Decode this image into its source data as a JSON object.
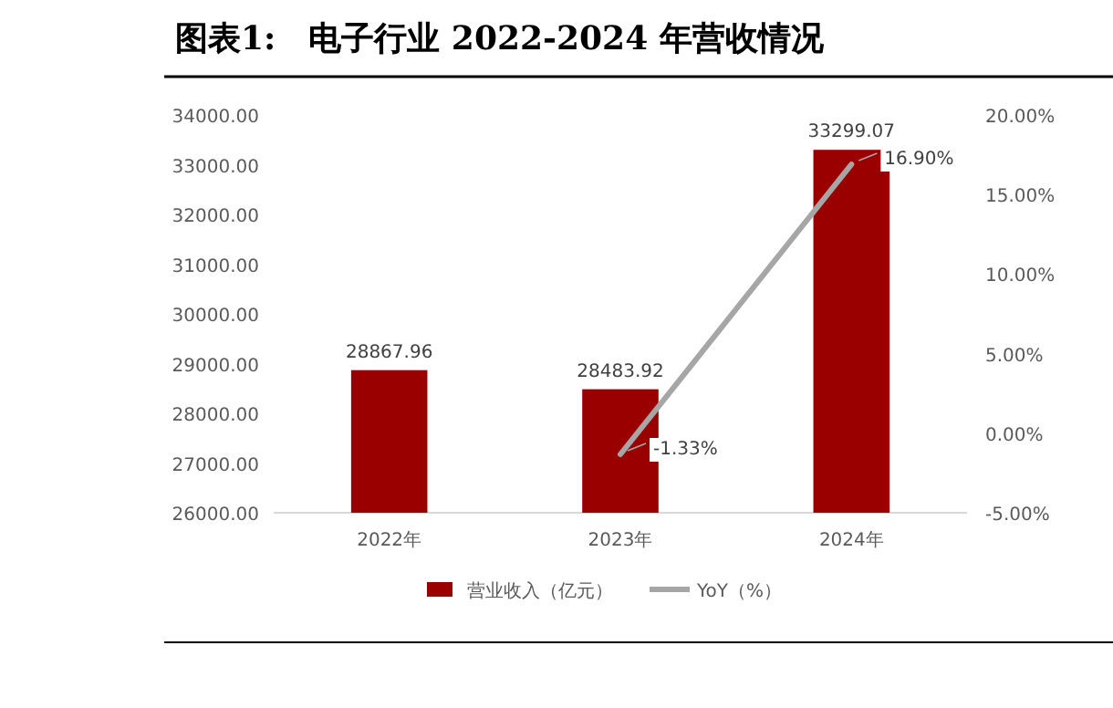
{
  "chart_data": {
    "type": "bar",
    "title": "图表1:　电子行业 2022-2024 年营收情况",
    "categories": [
      "2022年",
      "2023年",
      "2024年"
    ],
    "series": [
      {
        "name": "营业收入（亿元）",
        "color": "#9b0000",
        "values": [
          28867.96,
          28483.92,
          33299.07
        ],
        "value_labels": [
          "28867.96",
          "28483.92",
          "33299.07"
        ]
      },
      {
        "name": "YoY（%）",
        "type": "line",
        "axis": "y2",
        "color": "#a6a6a6",
        "values": [
          null,
          -1.33,
          16.9
        ],
        "value_labels": [
          null,
          "-1.33%",
          "16.90%"
        ]
      }
    ],
    "ylim": [
      26000,
      34000
    ],
    "yticks": [
      {
        "value": 26000,
        "label": "26000.00"
      },
      {
        "value": 27000,
        "label": "27000.00"
      },
      {
        "value": 28000,
        "label": "28000.00"
      },
      {
        "value": 29000,
        "label": "29000.00"
      },
      {
        "value": 30000,
        "label": "30000.00"
      },
      {
        "value": 31000,
        "label": "31000.00"
      },
      {
        "value": 32000,
        "label": "32000.00"
      },
      {
        "value": 33000,
        "label": "33000.00"
      },
      {
        "value": 34000,
        "label": "34000.00"
      }
    ],
    "y2lim": [
      -5,
      20
    ],
    "y2ticks": [
      {
        "value": -5,
        "label": "-5.00%"
      },
      {
        "value": 0,
        "label": "0.00%"
      },
      {
        "value": 5,
        "label": "5.00%"
      },
      {
        "value": 10,
        "label": "10.00%"
      },
      {
        "value": 15,
        "label": "15.00%"
      },
      {
        "value": 20,
        "label": "20.00%"
      }
    ],
    "legend": "bottom",
    "grid": false
  }
}
